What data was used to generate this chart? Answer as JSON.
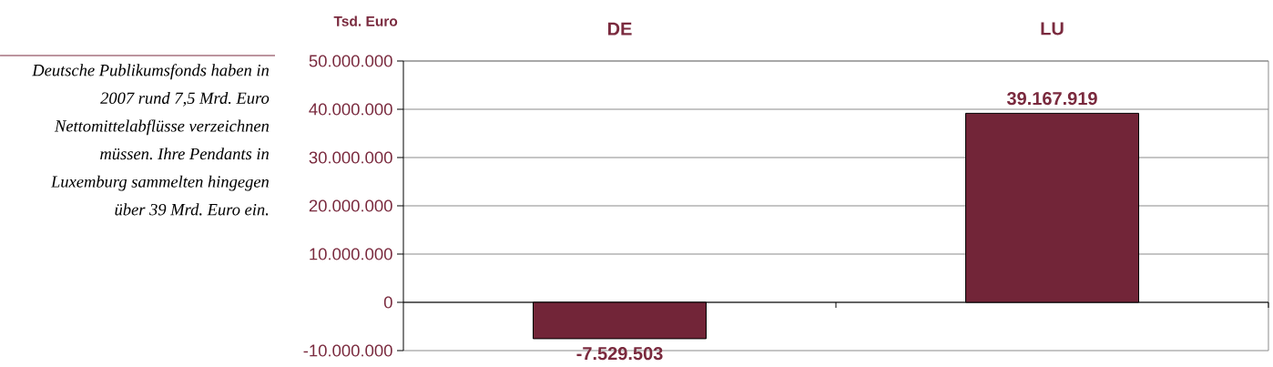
{
  "chart_data": {
    "type": "bar",
    "ylabel": "Tsd. Euro",
    "categories": [
      "DE",
      "LU"
    ],
    "values": [
      -7529503,
      39167919
    ],
    "color": "#722538",
    "value_labels": [
      "-7.529.503",
      "39.167.919"
    ],
    "ylim": [
      -10000000,
      50000000
    ],
    "yticks": [
      {
        "value": -10000000,
        "label": "-10.000.000"
      },
      0,
      {
        "value": 10000000,
        "label": "10.000.000"
      },
      {
        "value": 20000000,
        "label": "20.000.000"
      },
      {
        "value": 30000000,
        "label": "30.000.000"
      },
      {
        "value": 40000000,
        "label": "40.000.000"
      },
      {
        "value": 50000000,
        "label": "50.000.000"
      }
    ],
    "grid": "y",
    "annotations": [
      "Deutsche Publikumsfonds haben in 2007 rund 7,5 Mrd. Euro Nettomittelabflüsse verzeichnen müssen. Ihre Pendants in Luxemburg sammelten hingegen über 39 Mrd. Euro ein."
    ]
  }
}
